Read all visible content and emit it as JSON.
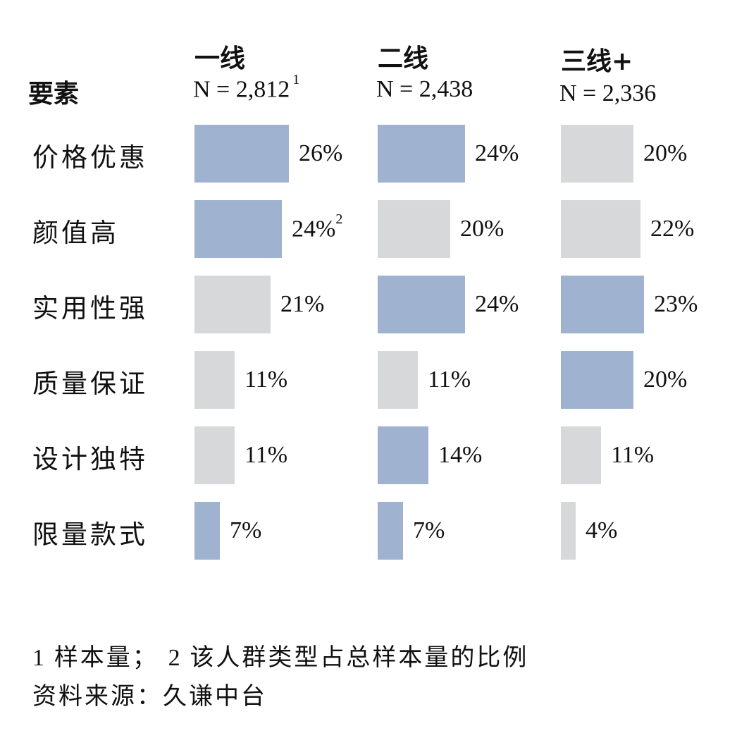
{
  "colors": {
    "highlight": "#9fb2cf",
    "neutral": "#d6d8da"
  },
  "chart_data": {
    "type": "bar",
    "title": "",
    "factor_header": "要素",
    "groups": [
      {
        "name": "一线",
        "n_label": "N = 2,812",
        "n_note": "1"
      },
      {
        "name": "二线",
        "n_label": "N = 2,438",
        "n_note": ""
      },
      {
        "name": "三线+",
        "n_label": "N = 2,336",
        "n_note": ""
      }
    ],
    "categories": [
      "价格优惠",
      "颜值高",
      "实用性强",
      "质量保证",
      "设计独特",
      "限量款式"
    ],
    "series": [
      {
        "name": "一线",
        "values": [
          26,
          24,
          21,
          11,
          11,
          7
        ],
        "highlight": [
          true,
          true,
          false,
          false,
          false,
          true
        ],
        "labels": [
          "26%",
          "24%",
          "21%",
          "11%",
          "11%",
          "7%"
        ],
        "label_notes": [
          "",
          "2",
          "",
          "",
          "",
          ""
        ]
      },
      {
        "name": "二线",
        "values": [
          24,
          20,
          24,
          11,
          14,
          7
        ],
        "highlight": [
          true,
          false,
          true,
          false,
          true,
          true
        ],
        "labels": [
          "24%",
          "20%",
          "24%",
          "11%",
          "14%",
          "7%"
        ],
        "label_notes": [
          "",
          "",
          "",
          "",
          "",
          ""
        ]
      },
      {
        "name": "三线+",
        "values": [
          20,
          22,
          23,
          20,
          11,
          4
        ],
        "highlight": [
          false,
          false,
          true,
          true,
          false,
          false
        ],
        "labels": [
          "20%",
          "22%",
          "23%",
          "20%",
          "11%",
          "4%"
        ],
        "label_notes": [
          "",
          "",
          "",
          "",
          "",
          ""
        ]
      }
    ]
  },
  "footnotes": {
    "line1_num1": "1",
    "line1_text1": "样本量；",
    "line1_num2": "2",
    "line1_text2": "该人群类型占总样本量的比例",
    "line2": "资料来源：久谦中台"
  }
}
